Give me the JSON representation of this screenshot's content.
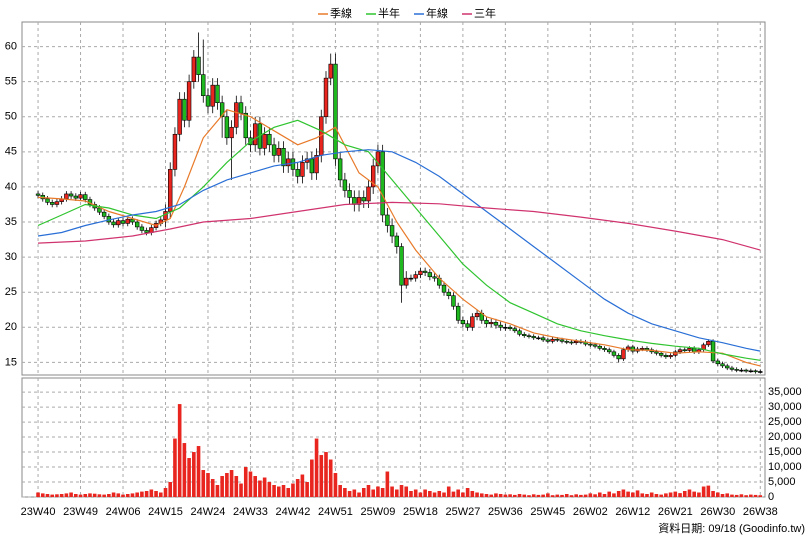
{
  "chart_data": {
    "type": "candlestick",
    "series": [
      {
        "name": "季線",
        "color": "#e87a2a",
        "x": [
          0,
          5,
          10,
          15,
          20,
          25,
          28,
          31,
          35,
          40,
          45,
          50,
          55,
          59,
          63,
          68,
          72,
          76,
          80,
          85,
          90,
          95,
          100,
          105,
          110,
          115,
          120,
          125,
          130,
          135,
          140,
          145,
          150,
          153
        ],
        "values": [
          38.5,
          38.3,
          38,
          36.5,
          35.5,
          34.5,
          35.5,
          40,
          47,
          51,
          50,
          48,
          46,
          47,
          48.5,
          42,
          40,
          35,
          31,
          27,
          24,
          21.5,
          20.5,
          19.2,
          18.5,
          18,
          17.5,
          16.8,
          16.7,
          16.3,
          16.5,
          16.3,
          15,
          14.5
        ]
      },
      {
        "name": "半年",
        "color": "#2fc42f",
        "x": [
          0,
          5,
          10,
          15,
          20,
          25,
          30,
          35,
          40,
          45,
          50,
          55,
          60,
          65,
          70,
          75,
          80,
          85,
          90,
          95,
          100,
          105,
          110,
          115,
          120,
          125,
          130,
          135,
          140,
          145,
          150,
          153
        ],
        "values": [
          34.5,
          36,
          37.5,
          37,
          36,
          35.5,
          37,
          40,
          43.5,
          46.5,
          48.5,
          49.5,
          48,
          46,
          45,
          41,
          37,
          33,
          29,
          26,
          23.5,
          22,
          20.5,
          19.5,
          18.8,
          18.2,
          17.7,
          17.3,
          17,
          16.2,
          15.6,
          15.3
        ]
      },
      {
        "name": "年線",
        "color": "#2a6fd6",
        "x": [
          0,
          5,
          10,
          15,
          20,
          25,
          30,
          35,
          40,
          45,
          50,
          55,
          60,
          65,
          70,
          75,
          80,
          85,
          90,
          95,
          100,
          105,
          110,
          115,
          120,
          125,
          130,
          135,
          140,
          145,
          150,
          153
        ],
        "values": [
          33,
          33.5,
          34.5,
          35.3,
          36,
          36.5,
          37.5,
          39.5,
          41,
          42,
          43,
          43.5,
          44.5,
          45,
          45.3,
          45,
          43.5,
          41.5,
          39,
          36.5,
          34,
          31.5,
          29,
          26.5,
          24,
          22,
          20.5,
          19.5,
          18.5,
          17.8,
          17,
          16.6
        ]
      },
      {
        "name": "三年",
        "color": "#d0336e",
        "x": [
          0,
          10,
          20,
          28,
          35,
          45,
          55,
          65,
          75,
          85,
          95,
          105,
          115,
          125,
          135,
          145,
          153
        ],
        "values": [
          32,
          32.3,
          33,
          34,
          35,
          35.5,
          36.5,
          37.5,
          37.8,
          37.6,
          37,
          36.5,
          35.7,
          34.8,
          33.7,
          32.5,
          31
        ]
      }
    ],
    "open": [
      39.0,
      38.8,
      38.3,
      37.8,
      37.5,
      37.9,
      38.3,
      39.0,
      38.7,
      38.4,
      38.9,
      38.2,
      37.5,
      37.0,
      36.4,
      35.8,
      35.0,
      34.6,
      35.2,
      34.8,
      35.4,
      35.0,
      34.3,
      33.8,
      33.5,
      34.2,
      34.8,
      35.3,
      36.5,
      42.5,
      47.5,
      52.5,
      49.5,
      55.0,
      58.5,
      56.0,
      53.0,
      51.5,
      54.5,
      52.0,
      50.0,
      47.0,
      48.5,
      52.0,
      50.5,
      47.0,
      46.0,
      49.0,
      45.5,
      47.5,
      46.0,
      44.5,
      45.5,
      43.0,
      44.0,
      42.5,
      41.5,
      43.5,
      44.0,
      42.0,
      44.5,
      50.0,
      55.5,
      57.5,
      44.0,
      41.0,
      39.5,
      38.5,
      37.5,
      38.5,
      38.0,
      40.0,
      43.0,
      45.0,
      36.0,
      34.5,
      33.0,
      31.5,
      26.0,
      27.0,
      27.0,
      27.5,
      28.0,
      27.8,
      27.2,
      27.0,
      26.0,
      25.0,
      24.5,
      23.0,
      21.0,
      20.5,
      20.0,
      21.5,
      22.0,
      21.0,
      20.5,
      20.7,
      20.3,
      20.0,
      20.0,
      19.8,
      19.5,
      19.0,
      18.8,
      18.7,
      18.5,
      18.5,
      18.2,
      18.0,
      18.3,
      18.2,
      18.0,
      17.9,
      17.8,
      18.0,
      17.9,
      17.6,
      17.5,
      17.3,
      17.0,
      16.8,
      16.5,
      16.0,
      15.5,
      16.8,
      17.2,
      16.6,
      16.9,
      17.0,
      16.8,
      16.5,
      16.3,
      16.0,
      15.8,
      16.0,
      16.5,
      16.8,
      16.7,
      17.0,
      16.5,
      16.8,
      17.5,
      18.0,
      15.2,
      14.8,
      14.5,
      14.2,
      14.0,
      13.9,
      13.9,
      13.8,
      13.8,
      13.7
    ],
    "high": [
      39.4,
      39.2,
      38.7,
      38.2,
      38.3,
      38.7,
      39.4,
      39.4,
      39.1,
      39.3,
      39.3,
      38.6,
      37.9,
      37.4,
      36.8,
      36.2,
      35.4,
      35.6,
      35.6,
      35.8,
      35.8,
      35.4,
      34.7,
      34.2,
      34.6,
      35.2,
      35.7,
      37.5,
      43.5,
      48.5,
      53.5,
      53.5,
      56.0,
      59.5,
      62.0,
      61.0,
      54.0,
      55.5,
      55.5,
      53.0,
      51.0,
      49.5,
      53.0,
      53.0,
      51.5,
      48.0,
      50.0,
      50.0,
      48.5,
      48.5,
      47.0,
      46.5,
      46.5,
      45.0,
      45.0,
      43.5,
      44.5,
      45.0,
      45.0,
      45.5,
      51.0,
      56.5,
      59.0,
      59.0,
      45.0,
      42.0,
      40.5,
      39.5,
      39.5,
      39.5,
      41.0,
      44.0,
      46.0,
      46.0,
      37.0,
      35.5,
      33.5,
      32.0,
      28.0,
      27.5,
      28.0,
      28.5,
      28.5,
      28.3,
      27.7,
      27.5,
      26.5,
      25.5,
      25.0,
      23.5,
      21.5,
      21.0,
      22.0,
      22.5,
      22.5,
      21.5,
      21.2,
      21.2,
      20.8,
      20.5,
      20.3,
      20.1,
      19.8,
      19.3,
      19.1,
      19.0,
      18.8,
      18.8,
      18.5,
      18.6,
      18.6,
      18.5,
      18.3,
      18.2,
      18.3,
      18.3,
      18.2,
      17.9,
      17.8,
      17.6,
      17.3,
      17.1,
      16.8,
      16.3,
      17.1,
      17.5,
      17.5,
      17.2,
      17.3,
      17.3,
      17.1,
      16.8,
      16.6,
      16.3,
      16.3,
      16.8,
      17.1,
      17.1,
      17.3,
      17.3,
      17.1,
      17.8,
      18.3,
      18.3,
      15.5,
      15.1,
      14.8,
      14.5,
      14.3,
      14.2,
      14.1,
      14.1,
      14.0,
      14.0
    ],
    "low": [
      38.4,
      37.9,
      37.4,
      37.1,
      37.1,
      37.5,
      37.9,
      38.3,
      38.0,
      38.0,
      37.8,
      37.1,
      36.6,
      36.0,
      35.4,
      34.6,
      34.2,
      34.2,
      34.4,
      34.4,
      34.6,
      33.9,
      33.4,
      33.1,
      33.1,
      33.8,
      34.4,
      34.3,
      35.5,
      41.5,
      46.5,
      48.5,
      48.5,
      54.0,
      55.0,
      52.0,
      50.5,
      50.5,
      51.0,
      47.0,
      46.0,
      41.0,
      47.5,
      49.5,
      46.0,
      45.0,
      45.0,
      44.5,
      44.5,
      45.0,
      43.5,
      43.5,
      42.0,
      42.0,
      41.5,
      40.5,
      40.5,
      42.5,
      41.0,
      41.0,
      43.5,
      49.0,
      54.5,
      43.0,
      40.0,
      38.5,
      37.5,
      36.5,
      36.5,
      37.0,
      37.0,
      39.0,
      42.0,
      35.0,
      33.5,
      32.0,
      30.5,
      23.5,
      25.5,
      26.5,
      26.5,
      27.0,
      27.3,
      26.7,
      26.5,
      25.5,
      24.5,
      24.0,
      22.5,
      20.5,
      20.0,
      19.5,
      19.5,
      21.0,
      20.5,
      20.0,
      20.0,
      19.8,
      19.5,
      19.5,
      19.5,
      19.2,
      18.7,
      18.5,
      18.4,
      18.2,
      18.2,
      17.9,
      17.7,
      17.7,
      17.9,
      17.7,
      17.6,
      17.5,
      17.5,
      17.6,
      17.3,
      17.2,
      17.0,
      16.7,
      16.5,
      16.2,
      15.7,
      15.0,
      15.2,
      16.5,
      16.3,
      16.3,
      16.6,
      16.5,
      16.2,
      16.0,
      15.7,
      15.5,
      15.5,
      15.7,
      16.2,
      16.4,
      16.4,
      16.2,
      16.2,
      16.5,
      17.2,
      14.9,
      14.5,
      14.2,
      13.9,
      13.7,
      13.6,
      13.6,
      13.5,
      13.5,
      13.4,
      13.4
    ],
    "close": [
      38.8,
      38.3,
      37.8,
      37.5,
      37.9,
      38.3,
      39.0,
      38.7,
      38.4,
      38.9,
      38.2,
      37.5,
      37.0,
      36.4,
      35.8,
      35.0,
      34.6,
      35.2,
      34.8,
      35.4,
      35.0,
      34.3,
      33.8,
      33.5,
      34.2,
      34.8,
      35.3,
      36.5,
      42.5,
      47.5,
      52.5,
      49.5,
      55.0,
      58.5,
      56.0,
      53.0,
      51.5,
      54.5,
      52.0,
      50.0,
      47.0,
      48.5,
      52.0,
      50.5,
      47.0,
      46.0,
      49.0,
      45.5,
      47.5,
      46.0,
      44.5,
      45.5,
      43.0,
      44.0,
      42.5,
      41.5,
      43.5,
      44.0,
      42.0,
      44.5,
      50.0,
      55.5,
      57.5,
      44.0,
      41.0,
      39.5,
      38.5,
      37.5,
      38.5,
      38.0,
      40.0,
      43.0,
      45.0,
      36.0,
      34.5,
      33.0,
      31.5,
      26.0,
      27.0,
      27.0,
      27.5,
      28.0,
      27.8,
      27.2,
      27.0,
      26.0,
      25.0,
      24.5,
      23.0,
      21.0,
      20.5,
      20.0,
      21.5,
      22.0,
      21.0,
      20.5,
      20.7,
      20.3,
      20.0,
      20.0,
      19.8,
      19.5,
      19.0,
      18.8,
      18.7,
      18.5,
      18.5,
      18.2,
      18.0,
      18.3,
      18.2,
      18.0,
      17.9,
      17.8,
      18.0,
      17.9,
      17.6,
      17.5,
      17.3,
      17.0,
      16.8,
      16.5,
      16.0,
      15.5,
      16.8,
      17.2,
      16.6,
      16.9,
      17.0,
      16.8,
      16.5,
      16.3,
      16.0,
      15.8,
      16.0,
      16.5,
      16.8,
      16.7,
      17.0,
      16.5,
      16.8,
      17.5,
      18.0,
      15.2,
      14.8,
      14.5,
      14.2,
      14.0,
      13.9,
      13.9,
      13.8,
      13.8,
      13.7,
      13.7
    ],
    "up_color": "#e8251f",
    "down_color": "#1fb81f",
    "ylim": [
      13.2,
      63.5
    ],
    "yticks": [
      15,
      20,
      25,
      30,
      35,
      40,
      45,
      50,
      55,
      60
    ],
    "xlim": [
      -3.4,
      154
    ],
    "xticks": [
      {
        "value": 0,
        "label": "23W40"
      },
      {
        "value": 9,
        "label": "23W49"
      },
      {
        "value": 18,
        "label": "24W06"
      },
      {
        "value": 27,
        "label": "24W15"
      },
      {
        "value": 36,
        "label": "24W24"
      },
      {
        "value": 45,
        "label": "24W33"
      },
      {
        "value": 54,
        "label": "24W42"
      },
      {
        "value": 63,
        "label": "24W51"
      },
      {
        "value": 72,
        "label": "25W09"
      },
      {
        "value": 81,
        "label": "25W18"
      },
      {
        "value": 90,
        "label": "25W27"
      },
      {
        "value": 99,
        "label": "25W36"
      },
      {
        "value": 108,
        "label": "25W45"
      },
      {
        "value": 117,
        "label": "26W02"
      },
      {
        "value": 126,
        "label": "26W12"
      },
      {
        "value": 135,
        "label": "26W21"
      },
      {
        "value": 144,
        "label": "26W30"
      },
      {
        "value": 153,
        "label": "26W38"
      }
    ],
    "grid": true,
    "volume": {
      "color": "#e8251f",
      "values": [
        1500,
        1200,
        1000,
        800,
        900,
        1000,
        1200,
        1500,
        1000,
        800,
        1000,
        1200,
        1100,
        900,
        800,
        1000,
        1500,
        1200,
        800,
        1000,
        1200,
        1500,
        1800,
        2000,
        2500,
        2000,
        1500,
        3000,
        5000,
        19500,
        31000,
        18000,
        13000,
        15000,
        17000,
        9000,
        8000,
        6000,
        4000,
        7000,
        8000,
        9000,
        7000,
        4500,
        10000,
        8500,
        7000,
        5500,
        6500,
        5000,
        4000,
        3500,
        4000,
        3000,
        4500,
        6000,
        7500,
        5000,
        12500,
        19500,
        14000,
        15000,
        12500,
        8000,
        4000,
        3000,
        2000,
        2500,
        1500,
        3000,
        4000,
        2500,
        3500,
        3000,
        8500,
        3500,
        2500,
        4000,
        3500,
        2000,
        2500,
        1500,
        2500,
        2000,
        1500,
        2000,
        1500,
        3500,
        1800,
        2500,
        1500,
        3000,
        2000,
        1500,
        1200,
        1000,
        800,
        1200,
        1000,
        800,
        900,
        700,
        1000,
        800,
        600,
        900,
        700,
        800,
        1200,
        600,
        800,
        700,
        1000,
        600,
        900,
        700,
        800,
        1200,
        900,
        1500,
        1000,
        1800,
        1200,
        2000,
        2500,
        1800,
        1500,
        2200,
        1200,
        1000,
        1500,
        1000,
        800,
        1200,
        1500,
        1800,
        1300,
        2000,
        2500,
        1800,
        1500,
        3500,
        3800,
        2000,
        1500,
        1000,
        1200,
        800,
        700,
        900,
        600,
        800,
        700,
        600
      ],
      "ylim": [
        0,
        39700
      ],
      "yticks": [
        0,
        {
          "value": 5000,
          "label": "5,000"
        },
        {
          "value": 10000,
          "label": "10,000"
        },
        {
          "value": 15000,
          "label": "15,000"
        },
        {
          "value": 20000,
          "label": "20,000"
        },
        {
          "value": 25000,
          "label": "25,000"
        },
        {
          "value": 30000,
          "label": "30,000"
        },
        {
          "value": 35000,
          "label": "35,000"
        }
      ]
    },
    "footnote": "資料日期: 09/18 (Goodinfo.tw)"
  }
}
